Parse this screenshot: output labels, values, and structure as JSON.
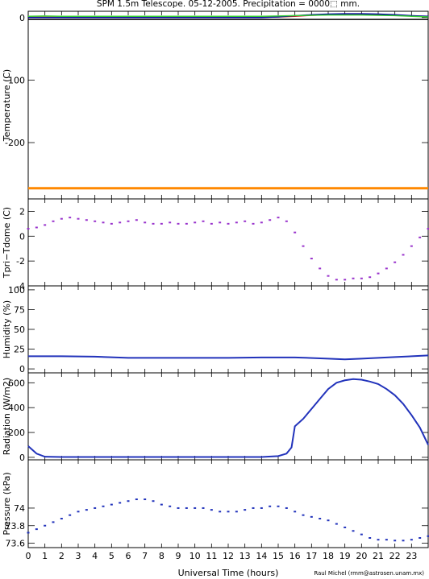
{
  "title": "SPM 1.5m Telescope. 05-12-2005. Precipitation = 0000⬚ mm.",
  "xlabel": "Universal Time (hours)",
  "credit": "Raul Michel (rmm@astrosen.unam.mx)",
  "colors": {
    "purple": "#9933cc",
    "blue": "#2233bb",
    "orange": "#ff8800",
    "green": "#33cc33",
    "red": "#cc2222",
    "navy": "#000099",
    "black": "#000000"
  },
  "chart_data": [
    {
      "type": "line",
      "name": "temperature",
      "ylabel": "Temperature (C)",
      "xlim": [
        0,
        24
      ],
      "ylim": [
        -290,
        10
      ],
      "yticks": [
        0,
        -100,
        -200
      ],
      "series": [
        {
          "color": "#000000",
          "x": [
            0,
            24
          ],
          "y": [
            -3,
            -3
          ]
        },
        {
          "color": "#cc2222",
          "x": [
            0,
            2,
            4,
            6,
            8,
            10,
            12,
            14,
            15,
            16,
            17,
            18,
            19,
            20,
            21,
            22,
            23,
            24
          ],
          "y": [
            0.5,
            0.5,
            0.5,
            0.5,
            0.5,
            0.5,
            0.5,
            0.5,
            0.8,
            2,
            3.5,
            4.5,
            5,
            5,
            4.5,
            3.5,
            2.5,
            1.5
          ]
        },
        {
          "color": "#000099",
          "x": [
            0,
            2,
            4,
            6,
            8,
            10,
            12,
            14,
            15,
            16,
            17,
            18,
            19,
            20,
            21,
            22,
            23,
            24
          ],
          "y": [
            0,
            0,
            0,
            0,
            0,
            0,
            0,
            0,
            1,
            3,
            4.5,
            5.5,
            6,
            6,
            5.5,
            4.5,
            3,
            2
          ]
        },
        {
          "color": "#33cc33",
          "x": [
            0,
            1,
            2,
            4,
            6,
            8,
            10,
            12,
            14,
            15,
            16,
            17,
            18,
            19,
            20,
            21,
            22,
            23,
            24
          ],
          "y": [
            2,
            2.5,
            2,
            2,
            2,
            2,
            2,
            2,
            2,
            2.5,
            3,
            3.5,
            4,
            4,
            4,
            3.5,
            3,
            2,
            1
          ]
        },
        {
          "color": "#ff8800",
          "x": [
            0,
            24
          ],
          "y": [
            -273,
            -273
          ]
        }
      ]
    },
    {
      "type": "scatter",
      "name": "tpri-tdome",
      "ylabel": "Tpri−Tdome (C)",
      "xlim": [
        0,
        24
      ],
      "ylim": [
        -4,
        3
      ],
      "yticks": [
        2,
        0,
        -2,
        -4
      ],
      "color": "#9933cc",
      "x": [
        0,
        0.5,
        1,
        1.5,
        2,
        2.5,
        3,
        3.5,
        4,
        4.5,
        5,
        5.5,
        6,
        6.5,
        7,
        7.5,
        8,
        8.5,
        9,
        9.5,
        10,
        10.5,
        11,
        11.5,
        12,
        12.5,
        13,
        13.5,
        14,
        14.5,
        15,
        15.5,
        16,
        16.5,
        17,
        17.5,
        18,
        18.5,
        19,
        19.5,
        20,
        20.5,
        21,
        21.5,
        22,
        22.5,
        23,
        23.5,
        24
      ],
      "y": [
        0.6,
        0.7,
        0.9,
        1.2,
        1.4,
        1.5,
        1.4,
        1.3,
        1.2,
        1.1,
        1.0,
        1.1,
        1.2,
        1.3,
        1.1,
        1.0,
        1.0,
        1.1,
        1.0,
        1.0,
        1.1,
        1.2,
        1.0,
        1.1,
        1.0,
        1.1,
        1.2,
        1.0,
        1.1,
        1.3,
        1.5,
        1.2,
        0.3,
        -0.8,
        -1.8,
        -2.6,
        -3.2,
        -3.5,
        -3.5,
        -3.4,
        -3.4,
        -3.3,
        -3.0,
        -2.6,
        -2.1,
        -1.5,
        -0.8,
        -0.1,
        0.6
      ]
    },
    {
      "type": "line",
      "name": "humidity",
      "ylabel": "Humidity (%)",
      "xlim": [
        0,
        24
      ],
      "ylim": [
        -5,
        105
      ],
      "yticks": [
        0,
        25,
        50,
        75,
        100
      ],
      "color": "#2233bb",
      "x": [
        0,
        2,
        4,
        6,
        8,
        10,
        12,
        14,
        16,
        18,
        19,
        20,
        22,
        24
      ],
      "y": [
        16,
        16,
        15.5,
        14,
        14,
        14,
        14,
        14.5,
        14.5,
        13,
        12,
        13,
        15,
        17
      ]
    },
    {
      "type": "line",
      "name": "radiation",
      "ylabel": "Radiation (W/m2)",
      "xlim": [
        0,
        24
      ],
      "ylim": [
        -20,
        680
      ],
      "yticks": [
        0,
        200,
        400,
        600
      ],
      "color": "#2233bb",
      "x": [
        0,
        0.5,
        1,
        2,
        4,
        6,
        8,
        10,
        12,
        14,
        15,
        15.5,
        15.8,
        16,
        16.5,
        17,
        17.5,
        18,
        18.5,
        19,
        19.5,
        20,
        20.5,
        21,
        21.5,
        22,
        22.5,
        23,
        23.5,
        24
      ],
      "y": [
        90,
        30,
        5,
        3,
        3,
        3,
        3,
        3,
        3,
        3,
        10,
        30,
        80,
        250,
        310,
        390,
        470,
        550,
        600,
        620,
        630,
        625,
        610,
        590,
        550,
        500,
        430,
        340,
        240,
        100
      ]
    },
    {
      "type": "scatter",
      "name": "pressure",
      "ylabel": "Pressure (kPa)",
      "xlim": [
        0,
        24
      ],
      "ylim": [
        73.55,
        74.55
      ],
      "yticks": [
        73.6,
        73.8,
        74
      ],
      "color": "#2233bb",
      "x": [
        0,
        0.5,
        1,
        1.5,
        2,
        2.5,
        3,
        3.5,
        4,
        4.5,
        5,
        5.5,
        6,
        6.5,
        7,
        7.5,
        8,
        8.5,
        9,
        9.5,
        10,
        10.5,
        11,
        11.5,
        12,
        12.5,
        13,
        13.5,
        14,
        14.5,
        15,
        15.5,
        16,
        16.5,
        17,
        17.5,
        18,
        18.5,
        19,
        19.5,
        20,
        20.5,
        21,
        21.5,
        22,
        22.5,
        23,
        23.5,
        24
      ],
      "y": [
        73.72,
        73.76,
        73.8,
        73.84,
        73.88,
        73.92,
        73.96,
        73.98,
        74.0,
        74.02,
        74.04,
        74.06,
        74.08,
        74.1,
        74.1,
        74.08,
        74.04,
        74.02,
        74.0,
        74.0,
        74.0,
        74.0,
        73.98,
        73.96,
        73.96,
        73.96,
        73.98,
        74.0,
        74.0,
        74.02,
        74.02,
        74.0,
        73.96,
        73.92,
        73.9,
        73.88,
        73.86,
        73.82,
        73.78,
        73.74,
        73.7,
        73.66,
        73.64,
        73.64,
        73.63,
        73.63,
        73.64,
        73.66,
        73.68
      ]
    }
  ],
  "xticks": [
    "0",
    "1",
    "2",
    "3",
    "4",
    "5",
    "6",
    "7",
    "8",
    "9",
    "10",
    "11",
    "12",
    "13",
    "14",
    "15",
    "16",
    "17",
    "18",
    "19",
    "20",
    "21",
    "22",
    "23"
  ]
}
